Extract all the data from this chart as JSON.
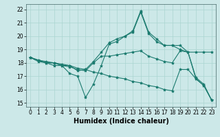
{
  "xlabel": "Humidex (Indice chaleur)",
  "bg_color": "#cce8e8",
  "line_color": "#1a7a6e",
  "grid_color": "#aad4d0",
  "xlim": [
    -0.5,
    23.5
  ],
  "ylim": [
    14.7,
    22.4
  ],
  "xticks": [
    0,
    1,
    2,
    3,
    4,
    5,
    6,
    7,
    8,
    9,
    10,
    11,
    12,
    13,
    14,
    15,
    16,
    17,
    18,
    19,
    20,
    21,
    22,
    23
  ],
  "yticks": [
    15,
    16,
    17,
    18,
    19,
    20,
    21,
    22
  ],
  "line1_x": [
    0,
    1,
    2,
    3,
    4,
    5,
    6,
    7,
    8,
    9,
    10,
    11,
    12,
    13,
    14,
    15,
    16,
    17,
    18,
    19,
    20,
    21,
    22,
    23
  ],
  "line1_y": [
    18.4,
    18.2,
    18.0,
    17.8,
    17.8,
    17.2,
    17.0,
    15.4,
    16.4,
    17.8,
    19.4,
    19.6,
    20.0,
    20.4,
    21.9,
    20.3,
    19.8,
    19.3,
    19.3,
    19.3,
    18.8,
    16.9,
    16.4,
    15.2
  ],
  "line2_x": [
    0,
    1,
    2,
    3,
    4,
    5,
    6,
    7,
    8,
    9,
    10,
    11,
    12,
    13,
    14,
    15,
    16,
    17,
    18,
    19,
    20,
    21,
    22,
    23
  ],
  "line2_y": [
    18.4,
    18.1,
    18.0,
    18.0,
    17.8,
    17.7,
    17.5,
    17.4,
    18.0,
    18.5,
    18.5,
    18.6,
    18.7,
    18.8,
    18.9,
    18.5,
    18.3,
    18.1,
    18.0,
    18.9,
    18.8,
    18.8,
    18.8,
    18.8
  ],
  "line3_x": [
    0,
    1,
    2,
    3,
    4,
    5,
    6,
    7,
    8,
    9,
    10,
    11,
    12,
    13,
    14,
    15,
    16,
    17,
    18,
    19,
    20,
    21,
    22,
    23
  ],
  "line3_y": [
    18.4,
    18.2,
    18.0,
    18.0,
    17.8,
    17.8,
    17.4,
    17.5,
    18.1,
    18.8,
    19.5,
    19.8,
    20.0,
    20.3,
    21.8,
    20.2,
    19.6,
    19.3,
    19.3,
    19.0,
    18.8,
    16.8,
    16.3,
    15.2
  ],
  "line4_x": [
    0,
    1,
    2,
    3,
    4,
    5,
    6,
    7,
    8,
    9,
    10,
    11,
    12,
    13,
    14,
    15,
    16,
    17,
    18,
    19,
    20,
    21,
    22,
    23
  ],
  "line4_y": [
    18.4,
    18.2,
    18.1,
    18.0,
    17.9,
    17.8,
    17.6,
    17.5,
    17.3,
    17.2,
    17.0,
    16.9,
    16.8,
    16.6,
    16.5,
    16.3,
    16.2,
    16.0,
    15.9,
    17.5,
    17.5,
    16.8,
    16.3,
    15.2
  ],
  "marker": "*",
  "markersize": 3,
  "linewidth": 0.8,
  "xlabel_fontsize": 7,
  "tick_fontsize": 5.5
}
